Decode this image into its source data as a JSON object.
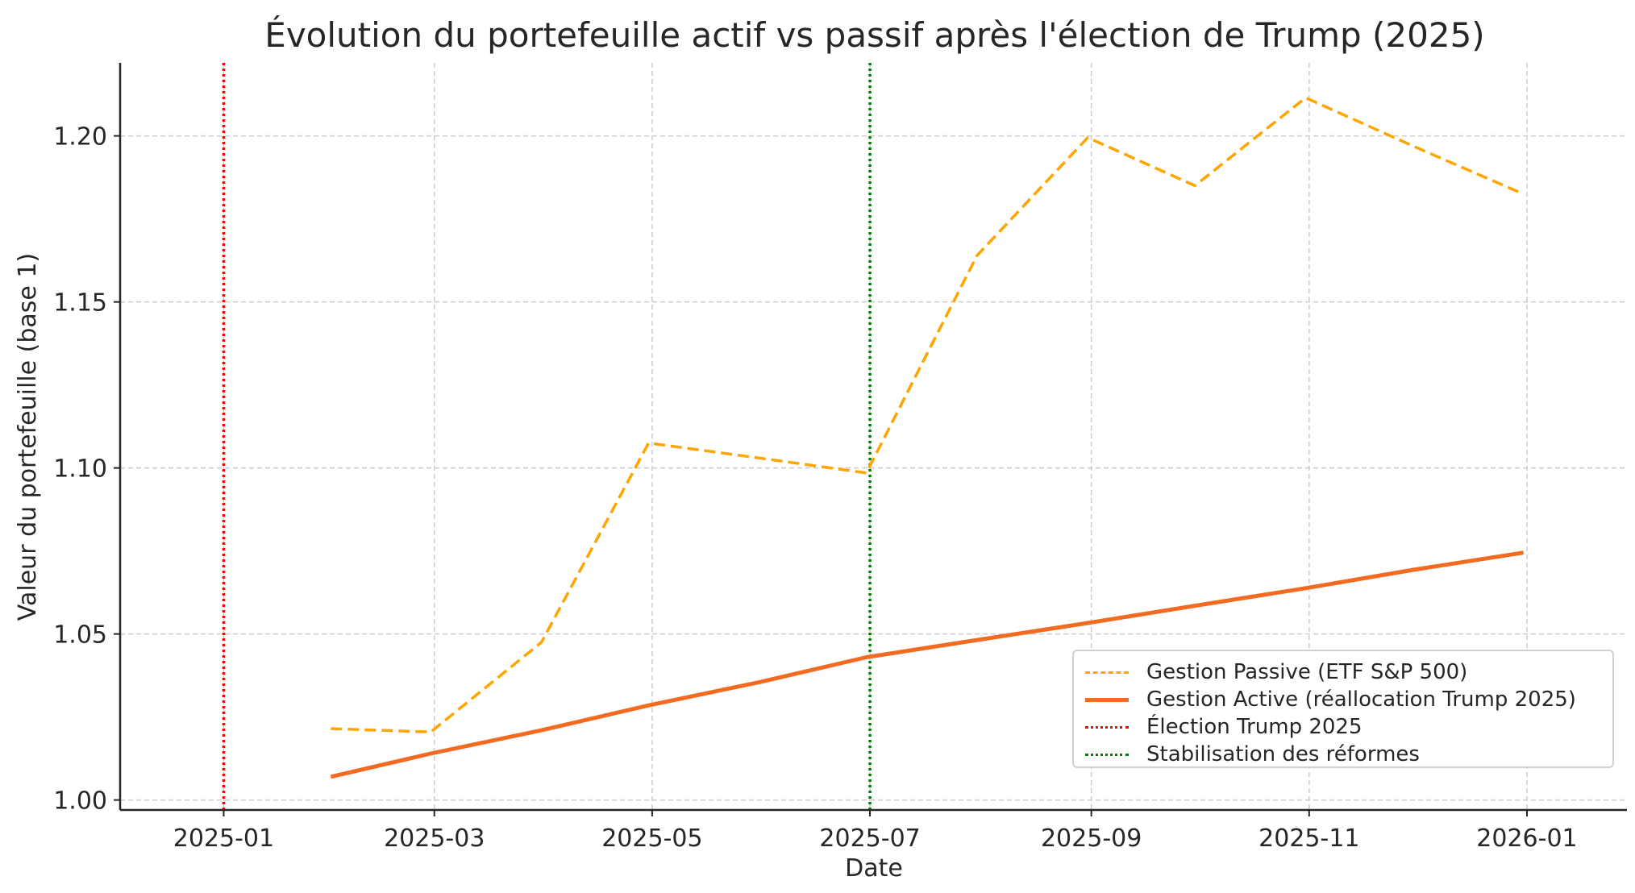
{
  "chart_data": {
    "type": "line",
    "title": "Évolution du portefeuille actif vs passif après l'élection de Trump (2025)",
    "xlabel": "Date",
    "ylabel": "Valeur du portefeuille (base 1)",
    "x_ticks": [
      "2025-01",
      "2025-03",
      "2025-05",
      "2025-07",
      "2025-09",
      "2025-11",
      "2026-01"
    ],
    "y_ticks": [
      "1.00",
      "1.05",
      "1.10",
      "1.15",
      "1.20"
    ],
    "ylim": [
      0.997,
      1.222
    ],
    "xlim": [
      "2024-12-03",
      "2026-01-29"
    ],
    "grid": true,
    "legend_position": "lower right",
    "series": [
      {
        "name": "Gestion Passive (ETF S&P 500)",
        "color": "#FFA500",
        "style": "dashed",
        "x": [
          "2025-01-31",
          "2025-02-28",
          "2025-03-31",
          "2025-04-30",
          "2025-05-31",
          "2025-06-30",
          "2025-07-31",
          "2025-08-31",
          "2025-09-30",
          "2025-10-31",
          "2025-11-30",
          "2025-12-31"
        ],
        "values": [
          1.0215,
          1.0205,
          1.0475,
          1.1075,
          1.103,
          1.0985,
          1.164,
          1.1995,
          1.185,
          1.2115,
          1.197,
          1.1825
        ]
      },
      {
        "name": "Gestion Active (réallocation Trump 2025)",
        "color": "#F26B21",
        "style": "solid",
        "x": [
          "2025-01-31",
          "2025-02-28",
          "2025-03-31",
          "2025-04-30",
          "2025-05-31",
          "2025-06-30",
          "2025-07-31",
          "2025-08-31",
          "2025-09-30",
          "2025-10-31",
          "2025-11-30",
          "2025-12-31"
        ],
        "values": [
          1.007,
          1.014,
          1.021,
          1.0285,
          1.0355,
          1.043,
          1.0482,
          1.0533,
          1.0585,
          1.0638,
          1.0693,
          1.0745
        ]
      }
    ],
    "vertical_lines": [
      {
        "name": "Élection Trump 2025",
        "x": "2025-01-01",
        "color": "#FF0000",
        "style": "dotted"
      },
      {
        "name": "Stabilisation des réformes",
        "x": "2025-07-01",
        "color": "#008000",
        "style": "dotted"
      }
    ]
  }
}
